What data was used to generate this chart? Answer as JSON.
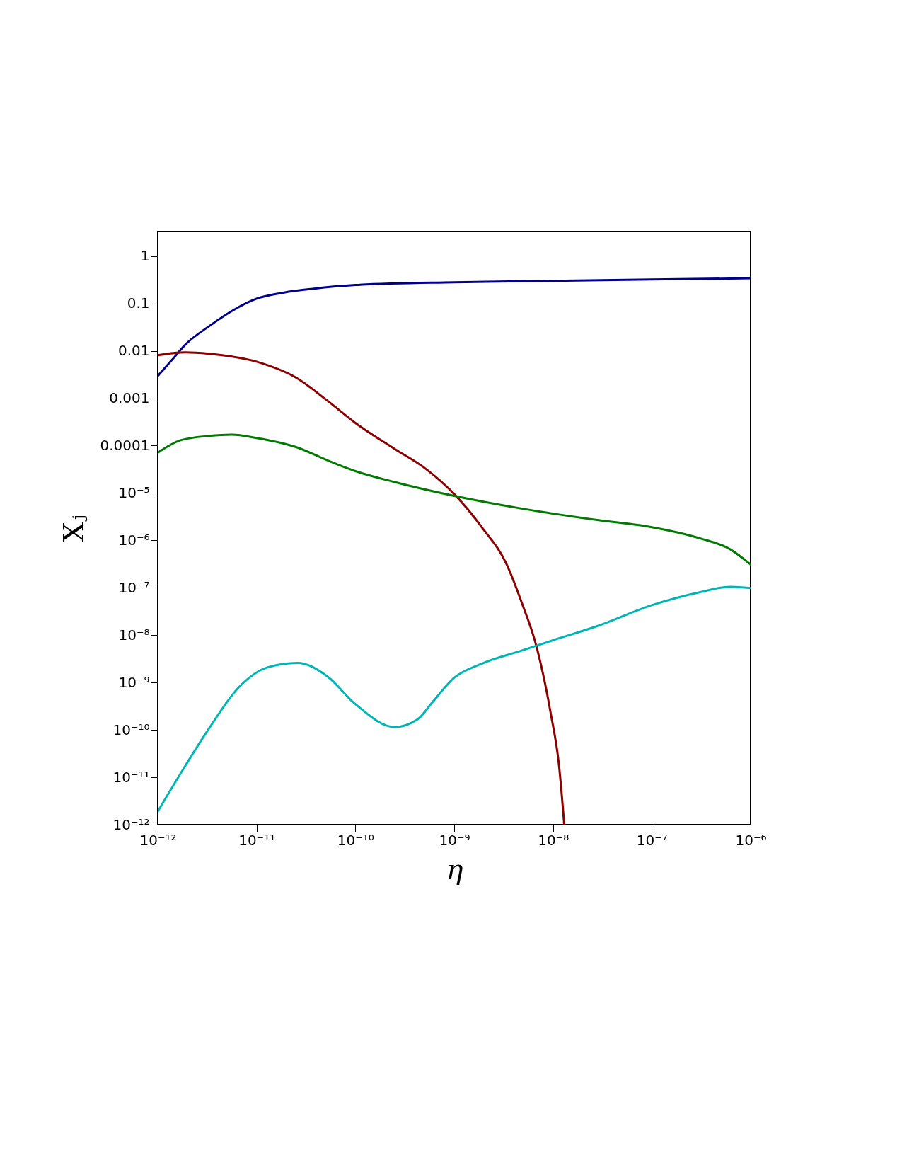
{
  "chart_data": {
    "type": "line",
    "xlabel": "η",
    "ylabel": "Xⱼ",
    "log": "xy",
    "grid": false,
    "line_style": "solid",
    "marker": "none",
    "xlim": [
      1e-12,
      1e-06
    ],
    "ylim": [
      1e-12,
      3.3
    ],
    "xticks": [
      {
        "value": 1e-12,
        "label": "10⁻¹²"
      },
      {
        "value": 1e-11,
        "label": "10⁻¹¹"
      },
      {
        "value": 1e-10,
        "label": "10⁻¹⁰"
      },
      {
        "value": 1e-09,
        "label": "10⁻⁹"
      },
      {
        "value": 1e-08,
        "label": "10⁻⁸"
      },
      {
        "value": 1e-07,
        "label": "10⁻⁷"
      },
      {
        "value": 1e-06,
        "label": "10⁻⁶"
      }
    ],
    "yticks": [
      1,
      0.1,
      0.01,
      0.001,
      0.0001,
      {
        "value": 1e-05,
        "label": "10⁻⁵"
      },
      {
        "value": 1e-06,
        "label": "10⁻⁶"
      },
      {
        "value": 1e-07,
        "label": "10⁻⁷"
      },
      {
        "value": 1e-08,
        "label": "10⁻⁸"
      },
      {
        "value": 1e-09,
        "label": "10⁻⁹"
      },
      {
        "value": 1e-10,
        "label": "10⁻¹⁰"
      },
      {
        "value": 1e-11,
        "label": "10⁻¹¹"
      },
      {
        "value": 1e-12,
        "label": "10⁻¹²"
      }
    ],
    "series": [
      {
        "color": "#00008b",
        "x": [
          1e-12,
          1.4e-12,
          1.9e-12,
          3.3e-12,
          5.6e-12,
          1e-11,
          1.9e-11,
          3.7e-11,
          1e-10,
          1e-09,
          1e-08,
          1e-07,
          1e-06
        ],
        "values": [
          0.00295,
          0.0065,
          0.0135,
          0.033,
          0.069,
          0.126,
          0.17,
          0.204,
          0.245,
          0.28,
          0.3,
          0.32,
          0.34
        ]
      },
      {
        "color": "#8b0000",
        "x": [
          1e-12,
          1.9e-12,
          3.3e-12,
          1e-11,
          2.6e-11,
          5.2e-11,
          1e-10,
          2.5e-10,
          5e-10,
          1e-09,
          1.9e-09,
          3.4e-09,
          4.8e-09,
          6.8e-09,
          9.5e-09,
          1.15e-08,
          1.3e-08
        ],
        "values": [
          0.0081,
          0.0093,
          0.0087,
          0.0059,
          0.0026,
          0.00089,
          0.0003,
          8.5e-05,
          3.4e-05,
          9.5e-06,
          1.9e-06,
          3.1e-07,
          5e-08,
          5.8e-09,
          2.2e-10,
          1.8e-11,
          1e-12
        ]
      },
      {
        "color": "#007a00",
        "x": [
          1e-12,
          1.7e-12,
          3.3e-12,
          5.6e-12,
          1e-11,
          2.6e-11,
          5.2e-11,
          1e-10,
          2.5e-10,
          1e-09,
          4.8e-09,
          2.8e-08,
          1e-07,
          3.1e-07,
          6.2e-07,
          1e-06
        ],
        "values": [
          7.1e-05,
          0.00013,
          0.00016,
          0.00017,
          0.000145,
          9.1e-05,
          4.9e-05,
          2.9e-05,
          1.7e-05,
          8.7e-06,
          4.7e-06,
          2.7e-06,
          1.9e-06,
          1.1e-06,
          6.5e-07,
          3.1e-07
        ]
      },
      {
        "color": "#00b5b5",
        "x": [
          1e-12,
          1.7e-12,
          3.3e-12,
          6.6e-12,
          1.3e-11,
          2.6e-11,
          5.2e-11,
          1e-10,
          2.5e-10,
          4.3e-10,
          6e-10,
          1e-09,
          1.9e-09,
          4.8e-09,
          1e-08,
          2.8e-08,
          1e-07,
          3.1e-07,
          6.2e-07,
          1e-06
        ],
        "values": [
          1.9e-12,
          1.2e-11,
          1.07e-10,
          7.9e-10,
          2.1e-09,
          2.6e-09,
          1.35e-09,
          3.5e-10,
          1.15e-10,
          1.7e-10,
          3.8e-10,
          1.26e-09,
          2.5e-09,
          4.7e-09,
          7.8e-09,
          1.55e-08,
          4.3e-08,
          8.1e-08,
          1.05e-07,
          9.8e-08
        ]
      }
    ]
  }
}
